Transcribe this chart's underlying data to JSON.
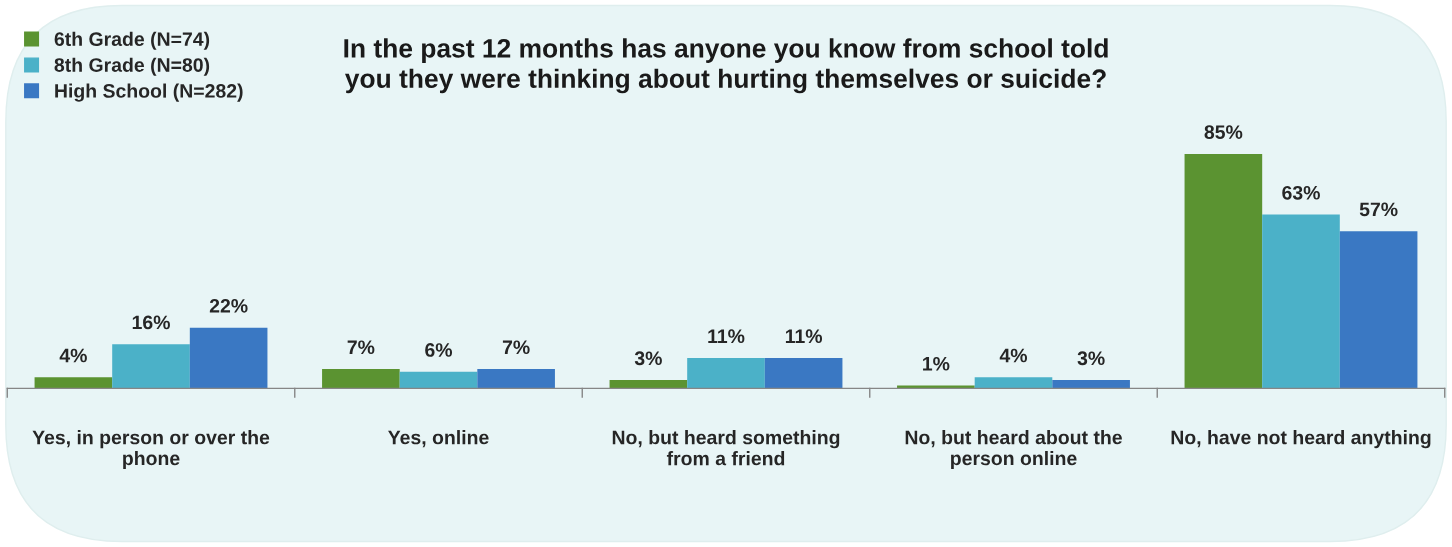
{
  "chart_data": {
    "type": "bar",
    "title": "In the past 12 months has anyone you know from school told\nyou they were thinking about hurting themselves or suicide?",
    "categories": [
      "Yes, in person or over the phone",
      "Yes, online",
      "No, but heard something from a friend",
      "No, but heard about the person online",
      "No, have not heard anything"
    ],
    "series": [
      {
        "name": "6th Grade (N=74)",
        "color": "#5b9331",
        "values": [
          4,
          7,
          3,
          1,
          85
        ],
        "value_labels": [
          "4%",
          "7%",
          "3%",
          "1%",
          "85%"
        ]
      },
      {
        "name": "8th Grade (N=80)",
        "color": "#4bb1c8",
        "values": [
          16,
          6,
          11,
          4,
          63
        ],
        "value_labels": [
          "16%",
          "6%",
          "11%",
          "4%",
          "63%"
        ]
      },
      {
        "name": "High School (N=282)",
        "color": "#3a78c3",
        "values": [
          22,
          7,
          11,
          3,
          57
        ],
        "value_labels": [
          "22%",
          "7%",
          "11%",
          "3%",
          "57%"
        ]
      }
    ],
    "legend": "top left"
  }
}
